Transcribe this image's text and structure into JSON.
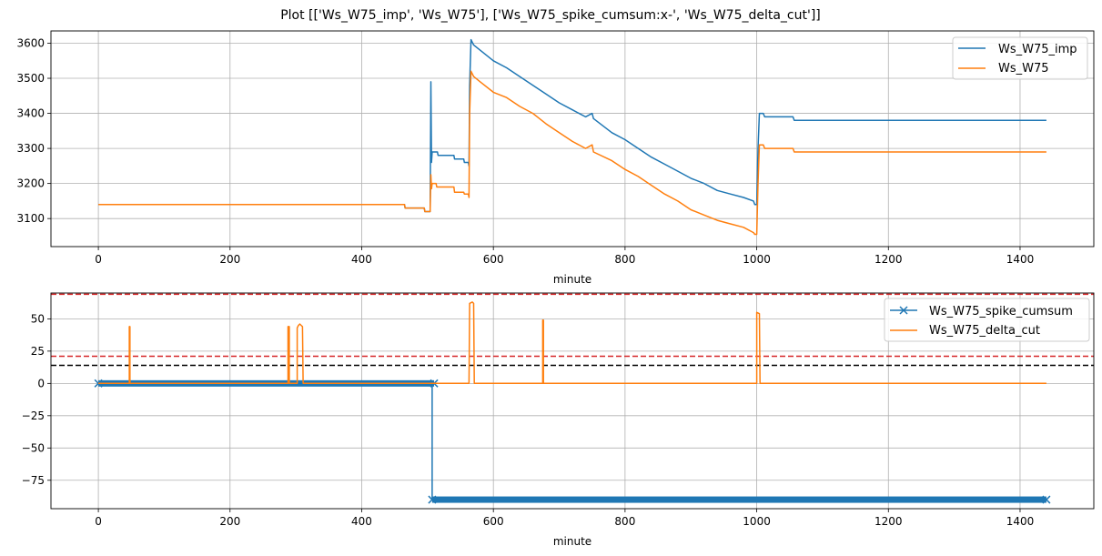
{
  "figure": {
    "title": "Plot [['Ws_W75_imp', 'Ws_W75'], ['Ws_W75_spike_cumsum:x-', 'Ws_W75_delta_cut']]"
  },
  "colors": {
    "blue": "#1f77b4",
    "orange": "#ff7f0e",
    "red_dashed": "#d62728",
    "black_dashed": "#000000",
    "grid": "#b0b0b0"
  },
  "chart_data": [
    {
      "type": "line",
      "xlabel": "minute",
      "ylabel": "",
      "xlim": [
        -72,
        1512
      ],
      "ylim": [
        3020,
        3635
      ],
      "xticks": [
        0,
        200,
        400,
        600,
        800,
        1000,
        1200,
        1400
      ],
      "xtick_labels": [
        "0",
        "200",
        "400",
        "600",
        "800",
        "1000",
        "1200",
        "1400"
      ],
      "yticks": [
        3100,
        3200,
        3300,
        3400,
        3500,
        3600
      ],
      "ytick_labels": [
        "3100",
        "3200",
        "3300",
        "3400",
        "3500",
        "3600"
      ],
      "grid": true,
      "legend_position": "top-right",
      "series": [
        {
          "name": "Ws_W75_imp",
          "color": "#1f77b4",
          "points": [
            [
              0,
              3140
            ],
            [
              465,
              3140
            ],
            [
              466,
              3130
            ],
            [
              495,
              3130
            ],
            [
              496,
              3120
            ],
            [
              504,
              3120
            ],
            [
              505,
              3490
            ],
            [
              506,
              3260
            ],
            [
              507,
              3290
            ],
            [
              515,
              3290
            ],
            [
              516,
              3280
            ],
            [
              540,
              3280
            ],
            [
              541,
              3270
            ],
            [
              555,
              3270
            ],
            [
              556,
              3260
            ],
            [
              562,
              3260
            ],
            [
              563,
              3250
            ],
            [
              564,
              3480
            ],
            [
              566,
              3610
            ],
            [
              570,
              3595
            ],
            [
              580,
              3580
            ],
            [
              600,
              3550
            ],
            [
              620,
              3530
            ],
            [
              640,
              3505
            ],
            [
              660,
              3480
            ],
            [
              680,
              3455
            ],
            [
              700,
              3430
            ],
            [
              720,
              3410
            ],
            [
              740,
              3390
            ],
            [
              750,
              3400
            ],
            [
              752,
              3385
            ],
            [
              780,
              3345
            ],
            [
              800,
              3325
            ],
            [
              820,
              3300
            ],
            [
              840,
              3275
            ],
            [
              860,
              3255
            ],
            [
              880,
              3235
            ],
            [
              900,
              3215
            ],
            [
              920,
              3200
            ],
            [
              940,
              3180
            ],
            [
              960,
              3170
            ],
            [
              980,
              3160
            ],
            [
              995,
              3150
            ],
            [
              997,
              3140
            ],
            [
              1000,
              3140
            ],
            [
              1002,
              3300
            ],
            [
              1004,
              3400
            ],
            [
              1010,
              3400
            ],
            [
              1012,
              3390
            ],
            [
              1055,
              3390
            ],
            [
              1057,
              3380
            ],
            [
              1440,
              3380
            ]
          ]
        },
        {
          "name": "Ws_W75",
          "color": "#ff7f0e",
          "points": [
            [
              0,
              3140
            ],
            [
              465,
              3140
            ],
            [
              466,
              3130
            ],
            [
              495,
              3130
            ],
            [
              496,
              3120
            ],
            [
              504,
              3120
            ],
            [
              505,
              3225
            ],
            [
              506,
              3185
            ],
            [
              507,
              3200
            ],
            [
              513,
              3200
            ],
            [
              514,
              3190
            ],
            [
              540,
              3190
            ],
            [
              541,
              3175
            ],
            [
              555,
              3175
            ],
            [
              556,
              3170
            ],
            [
              562,
              3170
            ],
            [
              563,
              3160
            ],
            [
              564,
              3400
            ],
            [
              566,
              3520
            ],
            [
              570,
              3505
            ],
            [
              580,
              3490
            ],
            [
              600,
              3460
            ],
            [
              620,
              3445
            ],
            [
              640,
              3420
            ],
            [
              660,
              3400
            ],
            [
              670,
              3385
            ],
            [
              680,
              3370
            ],
            [
              700,
              3345
            ],
            [
              720,
              3320
            ],
            [
              740,
              3300
            ],
            [
              750,
              3310
            ],
            [
              752,
              3290
            ],
            [
              780,
              3265
            ],
            [
              800,
              3240
            ],
            [
              820,
              3220
            ],
            [
              840,
              3195
            ],
            [
              860,
              3170
            ],
            [
              880,
              3150
            ],
            [
              900,
              3125
            ],
            [
              920,
              3110
            ],
            [
              940,
              3095
            ],
            [
              960,
              3085
            ],
            [
              980,
              3075
            ],
            [
              995,
              3060
            ],
            [
              997,
              3055
            ],
            [
              1000,
              3055
            ],
            [
              1002,
              3200
            ],
            [
              1004,
              3310
            ],
            [
              1010,
              3310
            ],
            [
              1012,
              3300
            ],
            [
              1055,
              3300
            ],
            [
              1057,
              3290
            ],
            [
              1440,
              3290
            ]
          ]
        }
      ]
    },
    {
      "type": "line",
      "xlabel": "minute",
      "ylabel": "",
      "xlim": [
        -72,
        1512
      ],
      "ylim": [
        -97,
        70
      ],
      "xticks": [
        0,
        200,
        400,
        600,
        800,
        1000,
        1200,
        1400
      ],
      "xtick_labels": [
        "0",
        "200",
        "400",
        "600",
        "800",
        "1000",
        "1200",
        "1400"
      ],
      "yticks": [
        -75,
        -50,
        -25,
        0,
        25,
        50
      ],
      "ytick_labels": [
        "−75",
        "−50",
        "−25",
        "0",
        "25",
        "50"
      ],
      "grid": true,
      "legend_position": "top-right",
      "hlines": [
        {
          "y": 69,
          "color": "#d62728",
          "style": "dashed"
        },
        {
          "y": 21,
          "color": "#d62728",
          "style": "dashed"
        },
        {
          "y": 14,
          "color": "#000000",
          "style": "dashed"
        }
      ],
      "series": [
        {
          "name": "Ws_W75_spike_cumsum",
          "color": "#1f77b4",
          "marker": "x",
          "segments": [
            {
              "x_start": 0,
              "x_end": 510,
              "y_high": 1,
              "y_low": -1
            },
            {
              "x_start": 507,
              "x_end": 1440,
              "y_high": -89,
              "y_low": -91
            }
          ],
          "step": {
            "x": 507,
            "from": -1,
            "to": -90
          }
        },
        {
          "name": "Ws_W75_delta_cut",
          "color": "#ff7f0e",
          "points": [
            [
              0,
              0
            ],
            [
              47,
              0
            ],
            [
              47,
              44
            ],
            [
              48,
              44
            ],
            [
              48,
              0
            ],
            [
              288,
              0
            ],
            [
              288,
              44
            ],
            [
              290,
              44
            ],
            [
              290,
              0
            ],
            [
              302,
              0
            ],
            [
              302,
              43
            ],
            [
              304,
              45
            ],
            [
              306,
              46
            ],
            [
              308,
              45
            ],
            [
              310,
              44
            ],
            [
              311,
              0
            ],
            [
              563,
              0
            ],
            [
              564,
              62
            ],
            [
              568,
              63
            ],
            [
              570,
              62
            ],
            [
              571,
              0
            ],
            [
              675,
              0
            ],
            [
              675,
              49
            ],
            [
              676,
              49
            ],
            [
              676,
              0
            ],
            [
              1000,
              0
            ],
            [
              1000,
              55
            ],
            [
              1004,
              54
            ],
            [
              1005,
              0
            ],
            [
              1440,
              0
            ]
          ]
        }
      ]
    }
  ]
}
